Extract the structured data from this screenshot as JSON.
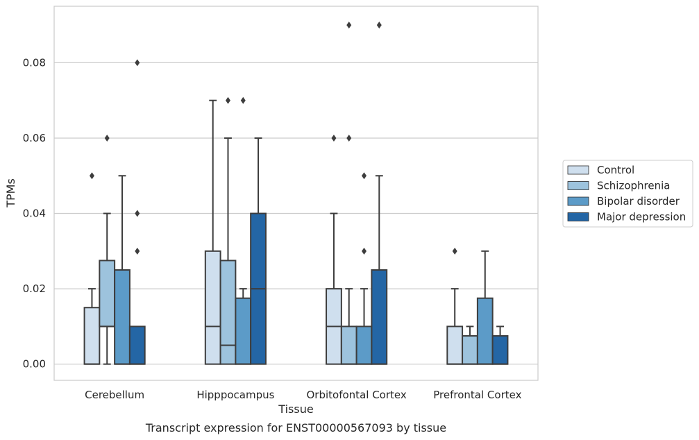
{
  "caption": "Transcript expression for ENST00000567093 by tissue",
  "chart_data": {
    "type": "boxplot",
    "xlabel": "Tissue",
    "ylabel": "TPMs",
    "ylim": [
      -0.0043,
      0.095
    ],
    "yticks": [
      0.0,
      0.02,
      0.04,
      0.06,
      0.08
    ],
    "ytick_labels": [
      "0.00",
      "0.02",
      "0.04",
      "0.06",
      "0.08"
    ],
    "grid": "horizontal",
    "legend_position": "right",
    "categories": [
      "Cerebellum",
      "Hipppocampus",
      "Orbitofontal Cortex",
      "Prefrontal Cortex"
    ],
    "series": [
      {
        "name": "Control",
        "color": "#cfdfee",
        "boxes": [
          {
            "q1": 0.0,
            "median": 0.0,
            "q3": 0.015,
            "whisker_low": 0.0,
            "whisker_high": 0.02,
            "outliers": [
              0.05
            ]
          },
          {
            "q1": 0.0,
            "median": 0.01,
            "q3": 0.03,
            "whisker_low": 0.0,
            "whisker_high": 0.07,
            "outliers": []
          },
          {
            "q1": 0.0,
            "median": 0.01,
            "q3": 0.02,
            "whisker_low": 0.0,
            "whisker_high": 0.04,
            "outliers": [
              0.06
            ]
          },
          {
            "q1": 0.0,
            "median": 0.0,
            "q3": 0.01,
            "whisker_low": 0.0,
            "whisker_high": 0.02,
            "outliers": [
              0.03
            ]
          }
        ]
      },
      {
        "name": "Schizophrenia",
        "color": "#9dc3dd",
        "boxes": [
          {
            "q1": 0.01,
            "median": 0.01,
            "q3": 0.0275,
            "whisker_low": 0.0,
            "whisker_high": 0.04,
            "outliers": [
              0.06
            ]
          },
          {
            "q1": 0.0,
            "median": 0.005,
            "q3": 0.0275,
            "whisker_low": 0.0,
            "whisker_high": 0.06,
            "outliers": [
              0.07
            ]
          },
          {
            "q1": 0.0,
            "median": 0.0,
            "q3": 0.01,
            "whisker_low": 0.0,
            "whisker_high": 0.02,
            "outliers": [
              0.06,
              0.09
            ]
          },
          {
            "q1": 0.0,
            "median": 0.0,
            "q3": 0.0075,
            "whisker_low": 0.0,
            "whisker_high": 0.01,
            "outliers": []
          }
        ]
      },
      {
        "name": "Bipolar disorder",
        "color": "#5c9bc8",
        "boxes": [
          {
            "q1": 0.0,
            "median": 0.0,
            "q3": 0.025,
            "whisker_low": 0.0,
            "whisker_high": 0.05,
            "outliers": []
          },
          {
            "q1": 0.0,
            "median": 0.0,
            "q3": 0.0175,
            "whisker_low": 0.0,
            "whisker_high": 0.02,
            "outliers": [
              0.07
            ]
          },
          {
            "q1": 0.0,
            "median": 0.0,
            "q3": 0.01,
            "whisker_low": 0.0,
            "whisker_high": 0.02,
            "outliers": [
              0.03,
              0.05
            ]
          },
          {
            "q1": 0.0,
            "median": 0.0,
            "q3": 0.0175,
            "whisker_low": 0.0,
            "whisker_high": 0.03,
            "outliers": []
          }
        ]
      },
      {
        "name": "Major depression",
        "color": "#2466a5",
        "boxes": [
          {
            "q1": 0.0,
            "median": 0.0,
            "q3": 0.01,
            "whisker_low": 0.0,
            "whisker_high": 0.01,
            "outliers": [
              0.03,
              0.04,
              0.08
            ]
          },
          {
            "q1": 0.0,
            "median": 0.02,
            "q3": 0.04,
            "whisker_low": 0.0,
            "whisker_high": 0.06,
            "outliers": []
          },
          {
            "q1": 0.0,
            "median": 0.0,
            "q3": 0.025,
            "whisker_low": 0.0,
            "whisker_high": 0.05,
            "outliers": [
              0.09
            ]
          },
          {
            "q1": 0.0,
            "median": 0.0,
            "q3": 0.0075,
            "whisker_low": 0.0,
            "whisker_high": 0.01,
            "outliers": []
          }
        ]
      }
    ]
  }
}
